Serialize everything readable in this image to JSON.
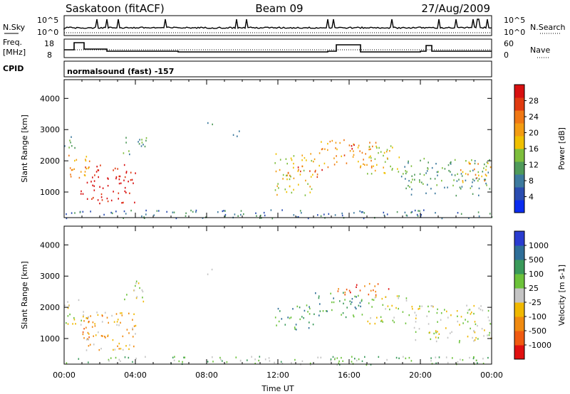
{
  "header": {
    "station": "Saskatoon (fitACF)",
    "beam": "Beam 09",
    "date": "27/Aug/2009"
  },
  "noise_panel": {
    "left_label": "N.Sky",
    "right_label": "N.Search",
    "left_ticks": [
      "10^5",
      "10^0"
    ],
    "right_ticks": [
      "10^5",
      "10^0"
    ]
  },
  "freq_panel": {
    "left_label_line1": "Freq.",
    "left_label_line2": "[MHz]",
    "right_label": "Nave",
    "left_ticks": [
      "18",
      "8"
    ],
    "right_ticks": [
      "60",
      "0"
    ]
  },
  "cpid_panel": {
    "label": "CPID",
    "text": "normalsound (fast) -157"
  },
  "chart_data": [
    {
      "type": "heatmap",
      "panel": "power",
      "ylabel": "Slant Range [km]",
      "ylim": [
        180,
        4600
      ],
      "yticks": [
        1000,
        2000,
        3000,
        4000
      ],
      "xticks": [
        "00:00",
        "04:00",
        "08:00",
        "12:00",
        "16:00",
        "20:00",
        "00:00"
      ],
      "colorbar_label": "Power [dB]",
      "colorbar_ticks": [
        4,
        8,
        12,
        16,
        20,
        24,
        28
      ],
      "colorbar_colors": [
        "#0a2cf0",
        "#2a4cb0",
        "#3d7a9e",
        "#4f9a5a",
        "#7dbe3c",
        "#f0c000",
        "#f39c12",
        "#f07814",
        "#e03a10",
        "#d81010"
      ],
      "regions": [
        {
          "t0": 0.0,
          "t1": 1.4,
          "r0": 1400,
          "r1": 2300,
          "level": 6
        },
        {
          "t0": 0.0,
          "t1": 0.6,
          "r0": 2300,
          "r1": 3000,
          "level": 3
        },
        {
          "t0": 0.9,
          "t1": 4.0,
          "r0": 650,
          "r1": 1900,
          "level": 9
        },
        {
          "t0": 3.3,
          "t1": 4.6,
          "r0": 2200,
          "r1": 2900,
          "level": 3
        },
        {
          "t0": 8.0,
          "t1": 8.3,
          "r0": 3000,
          "r1": 3300,
          "level": 2
        },
        {
          "t0": 9.4,
          "t1": 10.0,
          "r0": 2800,
          "r1": 3150,
          "level": 1
        },
        {
          "t0": 11.8,
          "t1": 14.0,
          "r0": 900,
          "r1": 2300,
          "level": 5
        },
        {
          "t0": 12.5,
          "t1": 14.5,
          "r0": 1500,
          "r1": 1900,
          "level": 8
        },
        {
          "t0": 14.0,
          "t1": 17.5,
          "r0": 1800,
          "r1": 2700,
          "level": 6
        },
        {
          "t0": 15.7,
          "t1": 16.3,
          "r0": 2200,
          "r1": 2600,
          "level": 8
        },
        {
          "t0": 17.0,
          "t1": 18.9,
          "r0": 1600,
          "r1": 2600,
          "level": 5
        },
        {
          "t0": 18.9,
          "t1": 24.0,
          "r0": 900,
          "r1": 2100,
          "level": 3
        },
        {
          "t0": 22.2,
          "t1": 24.0,
          "r0": 1300,
          "r1": 2000,
          "level": 6
        },
        {
          "t0": 0.0,
          "t1": 24.0,
          "r0": 180,
          "r1": 450,
          "level": 2
        }
      ]
    },
    {
      "type": "heatmap",
      "panel": "velocity",
      "ylabel": "Slant Range [km]",
      "ylim": [
        180,
        4600
      ],
      "yticks": [
        1000,
        2000,
        3000,
        4000
      ],
      "xticks": [
        "00:00",
        "04:00",
        "08:00",
        "12:00",
        "16:00",
        "20:00",
        "00:00"
      ],
      "xlabel": "Time UT",
      "colorbar_label": "Velocity [m s-1]",
      "colorbar_ticks": [
        "1000",
        "500",
        "100",
        "25",
        "-25",
        "-100",
        "-500",
        "-1000"
      ],
      "colorbar_colors": [
        "#2a3cd0",
        "#2e6e98",
        "#3a9a5a",
        "#6cc23a",
        "#c4c4c4",
        "#f0b800",
        "#f08a10",
        "#f05a10",
        "#e01010"
      ],
      "regions": [
        {
          "t0": 0.0,
          "t1": 1.4,
          "r0": 1400,
          "r1": 2300,
          "level": 4
        },
        {
          "t0": 0.9,
          "t1": 4.0,
          "r0": 650,
          "r1": 1900,
          "level": 3
        },
        {
          "t0": 1.0,
          "t1": 2.2,
          "r0": 900,
          "r1": 1800,
          "level": 2
        },
        {
          "t0": 3.3,
          "t1": 4.6,
          "r0": 2200,
          "r1": 2900,
          "level": 4
        },
        {
          "t0": 8.0,
          "t1": 8.3,
          "r0": 3000,
          "r1": 3300,
          "level": 4
        },
        {
          "t0": 11.8,
          "t1": 14.0,
          "r0": 1300,
          "r1": 2100,
          "level": 6
        },
        {
          "t0": 14.0,
          "t1": 17.0,
          "r0": 1700,
          "r1": 2500,
          "level": 6
        },
        {
          "t0": 15.2,
          "t1": 18.2,
          "r0": 2400,
          "r1": 2800,
          "level": 1
        },
        {
          "t0": 17.0,
          "t1": 19.3,
          "r0": 1500,
          "r1": 2400,
          "level": 4
        },
        {
          "t0": 19.3,
          "t1": 24.0,
          "r0": 900,
          "r1": 2100,
          "level": 4
        },
        {
          "t0": 0.0,
          "t1": 24.0,
          "r0": 180,
          "r1": 450,
          "level": 5
        }
      ]
    }
  ]
}
